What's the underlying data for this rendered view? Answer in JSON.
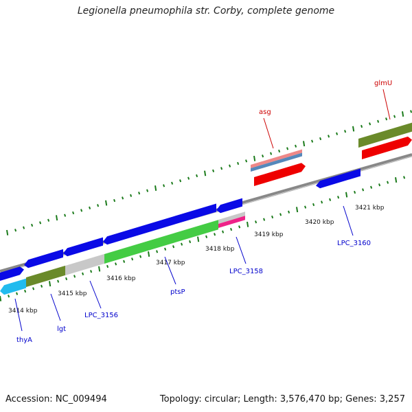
{
  "title": "Legionella pneumophila str. Corby, complete genome",
  "footer": {
    "accession": "Accession: NC_009494",
    "summary": "Topology: circular; Length: 3,576,470 bp; Genes: 3,257"
  },
  "ticks": [
    {
      "label": "3414 kbp"
    },
    {
      "label": "3415 kbp"
    },
    {
      "label": "3416 kbp"
    },
    {
      "label": "3417 kbp"
    },
    {
      "label": "3418 kbp"
    },
    {
      "label": "3419 kbp"
    },
    {
      "label": "3420 kbp"
    },
    {
      "label": "3421 kbp"
    }
  ],
  "gene_labels": [
    {
      "name": "thyA",
      "color": "#0000cc"
    },
    {
      "name": "lgt",
      "color": "#0000cc"
    },
    {
      "name": "LPC_3156",
      "color": "#0000cc"
    },
    {
      "name": "ptsP",
      "color": "#0000cc"
    },
    {
      "name": "LPC_3158",
      "color": "#0000cc"
    },
    {
      "name": "LPC_3160",
      "color": "#0000cc"
    },
    {
      "name": "asg",
      "color": "#cc0000"
    },
    {
      "name": "glmU",
      "color": "#cc0000"
    }
  ],
  "colors": {
    "backbone": "#888888",
    "tick": "#1a7a1a",
    "cds_blue": "#0a0ae6",
    "green": "#44cc44",
    "olive": "#6a8a2a",
    "gray": "#c8c8c8",
    "red": "#ee0000",
    "cyan": "#22bbee",
    "pink": "#ee2288",
    "salmon": "#ee8888",
    "steel": "#5588bb"
  }
}
